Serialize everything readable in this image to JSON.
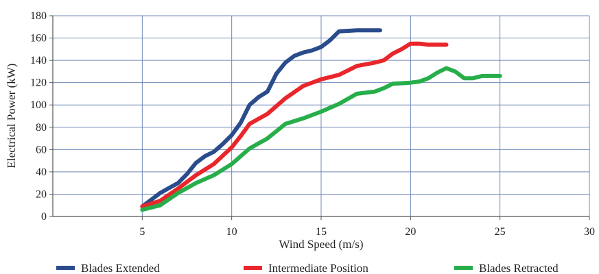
{
  "chart_data": {
    "type": "line",
    "title": "",
    "xlabel": "Wind Speed (m/s)",
    "ylabel": "Electrical Power (kW)",
    "xlim": [
      0,
      30
    ],
    "ylim": [
      0,
      180
    ],
    "xticks": [
      5,
      10,
      15,
      20,
      25,
      30
    ],
    "yticks": [
      0,
      20,
      40,
      60,
      80,
      100,
      120,
      140,
      160,
      180
    ],
    "grid": true,
    "legend_position": "bottom",
    "series": [
      {
        "name": "Blades Extended",
        "color": "#2b4c8c",
        "points": [
          [
            5,
            9
          ],
          [
            5.5,
            15
          ],
          [
            6,
            21
          ],
          [
            7,
            30
          ],
          [
            7.5,
            38
          ],
          [
            8,
            48
          ],
          [
            8.5,
            54
          ],
          [
            9,
            58
          ],
          [
            9.5,
            65
          ],
          [
            10,
            73
          ],
          [
            10.5,
            84
          ],
          [
            11,
            100
          ],
          [
            11.5,
            107
          ],
          [
            12,
            112
          ],
          [
            12.5,
            128
          ],
          [
            13,
            138
          ],
          [
            13.5,
            144
          ],
          [
            14,
            147
          ],
          [
            14.5,
            149
          ],
          [
            15,
            152
          ],
          [
            15.5,
            158
          ],
          [
            16,
            166
          ],
          [
            17,
            167
          ],
          [
            18,
            167
          ],
          [
            18.3,
            167
          ]
        ]
      },
      {
        "name": "Intermediate Position",
        "color": "#e8262b",
        "points": [
          [
            5,
            9
          ],
          [
            6,
            14
          ],
          [
            7,
            25
          ],
          [
            8,
            37
          ],
          [
            9,
            47
          ],
          [
            10,
            62
          ],
          [
            10.5,
            72
          ],
          [
            11,
            83
          ],
          [
            12,
            92
          ],
          [
            13,
            106
          ],
          [
            14,
            117
          ],
          [
            15,
            123
          ],
          [
            16,
            127
          ],
          [
            17,
            135
          ],
          [
            18,
            138
          ],
          [
            18.5,
            140
          ],
          [
            19,
            146
          ],
          [
            19.5,
            150
          ],
          [
            20,
            155
          ],
          [
            20.5,
            155
          ],
          [
            21,
            154
          ],
          [
            21.5,
            154
          ],
          [
            22,
            154
          ]
        ]
      },
      {
        "name": "Blades Retracted",
        "color": "#27ae4a",
        "points": [
          [
            5,
            6
          ],
          [
            6,
            10
          ],
          [
            7,
            21
          ],
          [
            8,
            30
          ],
          [
            9,
            37
          ],
          [
            10,
            47
          ],
          [
            11,
            61
          ],
          [
            12,
            70
          ],
          [
            13,
            83
          ],
          [
            14,
            88
          ],
          [
            15,
            94
          ],
          [
            16,
            101
          ],
          [
            17,
            110
          ],
          [
            18,
            112
          ],
          [
            18.5,
            115
          ],
          [
            19,
            119
          ],
          [
            20,
            120
          ],
          [
            20.5,
            121
          ],
          [
            21,
            124
          ],
          [
            21.5,
            129
          ],
          [
            22,
            133
          ],
          [
            22.5,
            130
          ],
          [
            23,
            124
          ],
          [
            23.5,
            124
          ],
          [
            24,
            126
          ],
          [
            25,
            126
          ]
        ]
      }
    ]
  }
}
